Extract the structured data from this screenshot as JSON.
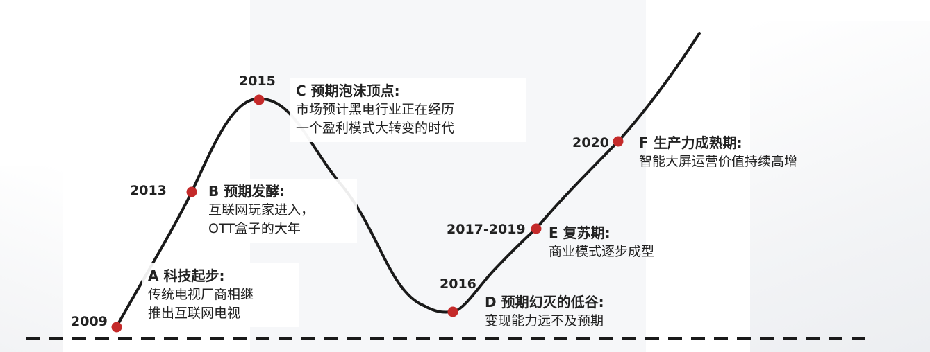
{
  "colors": {
    "curve": "#1a1a1a",
    "marker": "#c42a2a",
    "baseline": "#1a1a1a",
    "text": "#222222"
  },
  "phases": [
    {
      "id": "a",
      "year": "2009",
      "title": "A 科技起步:",
      "desc": [
        "传统电视厂商相继",
        "推出互联网电视"
      ]
    },
    {
      "id": "b",
      "year": "2013",
      "title": "B  预期发酵:",
      "desc": [
        "互联网玩家进入，",
        "OTT盒子的大年"
      ]
    },
    {
      "id": "c",
      "year": "2015",
      "title": "C 预期泡沫顶点:",
      "desc": [
        "市场预计黑电行业正在经历",
        "一个盈利模式大转变的时代"
      ]
    },
    {
      "id": "d",
      "year": "2016",
      "title": "D 预期幻灭的低谷:",
      "desc": [
        "变现能力远不及预期"
      ]
    },
    {
      "id": "e",
      "year": "2017-2019",
      "title": "E 复苏期:",
      "desc": [
        "商业模式逐步成型"
      ]
    },
    {
      "id": "f",
      "year": "2020",
      "title": "F 生产力成熟期:",
      "desc": [
        "智能大屏运营价值持续高增"
      ]
    }
  ]
}
